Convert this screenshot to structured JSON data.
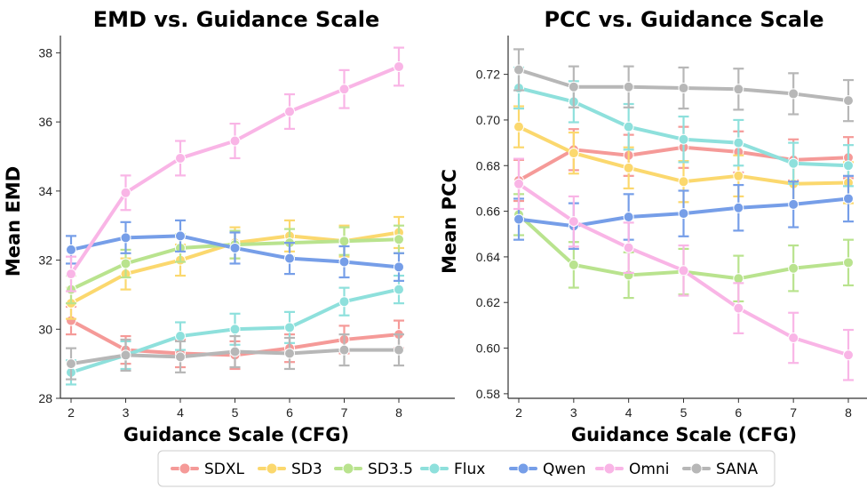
{
  "chart_data": [
    {
      "type": "line",
      "title": "EMD vs. Guidance Scale",
      "xlabel": "Guidance Scale (CFG)",
      "ylabel": "Mean EMD",
      "x": [
        2,
        3,
        4,
        5,
        6,
        7,
        8
      ],
      "ylim": [
        28,
        38.5
      ],
      "yticks": [
        28,
        30,
        32,
        34,
        36,
        38
      ],
      "grid": false,
      "series": [
        {
          "name": "SDXL",
          "color": "#f59a98",
          "values": [
            30.25,
            29.4,
            29.3,
            29.25,
            29.45,
            29.7,
            29.85
          ],
          "errors": [
            0.4,
            0.4,
            0.4,
            0.4,
            0.4,
            0.4,
            0.4
          ]
        },
        {
          "name": "SD3",
          "color": "#fbd86e",
          "values": [
            30.75,
            31.6,
            32.0,
            32.5,
            32.7,
            32.55,
            32.8
          ],
          "errors": [
            0.45,
            0.45,
            0.45,
            0.45,
            0.45,
            0.45,
            0.45
          ]
        },
        {
          "name": "SD3.5",
          "color": "#b9e38e",
          "values": [
            31.15,
            31.9,
            32.35,
            32.45,
            32.5,
            32.55,
            32.6
          ],
          "errors": [
            0.4,
            0.4,
            0.4,
            0.4,
            0.4,
            0.4,
            0.4
          ]
        },
        {
          "name": "Flux",
          "color": "#8ee0dc",
          "values": [
            28.75,
            29.25,
            29.8,
            30.0,
            30.05,
            30.8,
            31.15
          ],
          "errors": [
            0.35,
            0.4,
            0.4,
            0.45,
            0.45,
            0.4,
            0.4
          ]
        },
        {
          "name": "Qwen",
          "color": "#769ee8",
          "values": [
            32.3,
            32.65,
            32.7,
            32.35,
            32.05,
            31.95,
            31.8
          ],
          "errors": [
            0.4,
            0.45,
            0.45,
            0.45,
            0.45,
            0.45,
            0.4
          ]
        },
        {
          "name": "Omni",
          "color": "#f9b5e6",
          "values": [
            31.6,
            33.95,
            34.95,
            35.45,
            36.3,
            36.95,
            37.6
          ],
          "errors": [
            0.5,
            0.5,
            0.5,
            0.5,
            0.5,
            0.55,
            0.55
          ]
        },
        {
          "name": "SANA",
          "color": "#b7b7b7",
          "values": [
            29.0,
            29.25,
            29.2,
            29.35,
            29.3,
            29.4,
            29.4
          ],
          "errors": [
            0.45,
            0.45,
            0.45,
            0.45,
            0.45,
            0.45,
            0.45
          ]
        }
      ]
    },
    {
      "type": "line",
      "title": "PCC vs. Guidance Scale",
      "xlabel": "Guidance Scale (CFG)",
      "ylabel": "Mean PCC",
      "x": [
        2,
        3,
        4,
        5,
        6,
        7,
        8
      ],
      "ylim": [
        0.578,
        0.737
      ],
      "yticks": [
        0.58,
        0.6,
        0.62,
        0.64,
        0.66,
        0.68,
        0.7,
        0.72
      ],
      "grid": false,
      "series": [
        {
          "name": "SDXL",
          "color": "#f59a98",
          "values": [
            0.6735,
            0.687,
            0.6845,
            0.688,
            0.686,
            0.6825,
            0.6835
          ],
          "errors": [
            0.009,
            0.009,
            0.009,
            0.009,
            0.009,
            0.009,
            0.009
          ]
        },
        {
          "name": "SD3",
          "color": "#fbd86e",
          "values": [
            0.697,
            0.6855,
            0.679,
            0.673,
            0.6755,
            0.672,
            0.6725
          ],
          "errors": [
            0.009,
            0.009,
            0.009,
            0.009,
            0.009,
            0.009,
            0.009
          ]
        },
        {
          "name": "SD3.5",
          "color": "#b9e38e",
          "values": [
            0.6585,
            0.6365,
            0.632,
            0.6335,
            0.6305,
            0.635,
            0.6375
          ],
          "errors": [
            0.009,
            0.01,
            0.01,
            0.01,
            0.01,
            0.01,
            0.01
          ]
        },
        {
          "name": "Flux",
          "color": "#8ee0dc",
          "values": [
            0.714,
            0.708,
            0.697,
            0.6915,
            0.69,
            0.681,
            0.68
          ],
          "errors": [
            0.009,
            0.009,
            0.01,
            0.01,
            0.01,
            0.009,
            0.009
          ]
        },
        {
          "name": "Qwen",
          "color": "#769ee8",
          "values": [
            0.6565,
            0.6535,
            0.6575,
            0.659,
            0.6615,
            0.663,
            0.6655
          ],
          "errors": [
            0.009,
            0.01,
            0.01,
            0.01,
            0.01,
            0.01,
            0.01
          ]
        },
        {
          "name": "Omni",
          "color": "#f9b5e6",
          "values": [
            0.672,
            0.6555,
            0.644,
            0.634,
            0.6175,
            0.6045,
            0.597
          ],
          "errors": [
            0.011,
            0.011,
            0.011,
            0.011,
            0.011,
            0.011,
            0.011
          ]
        },
        {
          "name": "SANA",
          "color": "#b7b7b7",
          "values": [
            0.722,
            0.7145,
            0.7145,
            0.714,
            0.7135,
            0.7115,
            0.7085
          ],
          "errors": [
            0.009,
            0.009,
            0.009,
            0.009,
            0.009,
            0.009,
            0.009
          ]
        }
      ]
    }
  ],
  "legend": {
    "placement": "bottom-center",
    "items": [
      {
        "label": "SDXL",
        "color": "#f59a98"
      },
      {
        "label": "SD3",
        "color": "#fbd86e"
      },
      {
        "label": "SD3.5",
        "color": "#b9e38e"
      },
      {
        "label": "Flux",
        "color": "#8ee0dc"
      },
      {
        "label": "Qwen",
        "color": "#769ee8"
      },
      {
        "label": "Omni",
        "color": "#f9b5e6"
      },
      {
        "label": "SANA",
        "color": "#b7b7b7"
      }
    ]
  }
}
